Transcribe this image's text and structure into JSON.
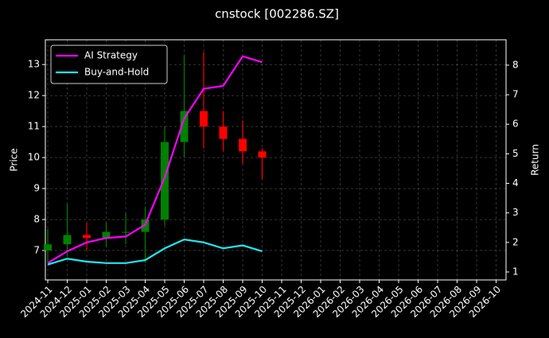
{
  "chart_data": {
    "type": "candlestick",
    "title": "cnstock [002286.SZ]",
    "ylabel": "Price",
    "y2label": "Return",
    "x": [
      "2024-11",
      "2024-12",
      "2025-01",
      "2025-02",
      "2025-03",
      "2025-04",
      "2025-05",
      "2025-06",
      "2025-07",
      "2025-08",
      "2025-09",
      "2025-10"
    ],
    "open": [
      7.0,
      7.2,
      7.5,
      7.4,
      7.6,
      7.6,
      8.0,
      10.5,
      11.5,
      11.0,
      10.6,
      10.2
    ],
    "high": [
      7.7,
      8.5,
      7.9,
      7.9,
      8.2,
      8.4,
      11.0,
      13.3,
      13.4,
      11.5,
      11.2,
      10.3
    ],
    "low": [
      6.6,
      6.8,
      7.0,
      7.1,
      7.2,
      6.6,
      7.8,
      10.0,
      10.3,
      10.2,
      9.8,
      9.3
    ],
    "close": [
      7.2,
      7.5,
      7.4,
      7.6,
      7.6,
      8.0,
      10.5,
      11.5,
      11.0,
      10.6,
      10.2,
      10.0
    ],
    "up_color": "#008000",
    "down_color": "#ff0000",
    "series": [
      {
        "name": "AI Strategy",
        "color": "#ff00ff",
        "axis": "y2",
        "values": [
          1.3,
          1.7,
          2.0,
          2.15,
          2.2,
          2.6,
          4.2,
          6.2,
          7.2,
          7.3,
          8.3,
          8.1
        ]
      },
      {
        "name": "Buy-and-Hold",
        "color": "#22e8f0",
        "axis": "y2",
        "values": [
          1.25,
          1.45,
          1.35,
          1.3,
          1.3,
          1.4,
          1.8,
          2.1,
          2.0,
          1.8,
          1.9,
          1.7
        ]
      }
    ],
    "ylim": [
      6.05,
      13.8
    ],
    "yticks": [
      7,
      8,
      9,
      10,
      11,
      12,
      13
    ],
    "y2lim": [
      0.73,
      8.86
    ],
    "y2ticks": [
      1,
      2,
      3,
      4,
      5,
      6,
      7,
      8
    ],
    "xticks": [
      "2024-11",
      "2024-12",
      "2025-01",
      "2025-02",
      "2025-03",
      "2025-04",
      "2025-05",
      "2025-06",
      "2025-07",
      "2025-08",
      "2025-09",
      "2025-10",
      "2025-11",
      "2025-12",
      "2026-01",
      "2026-02",
      "2026-03",
      "2026-04",
      "2026-05",
      "2026-06",
      "2026-07",
      "2026-08",
      "2026-09",
      "2026-10"
    ],
    "grid": true,
    "legend": "upper left"
  }
}
